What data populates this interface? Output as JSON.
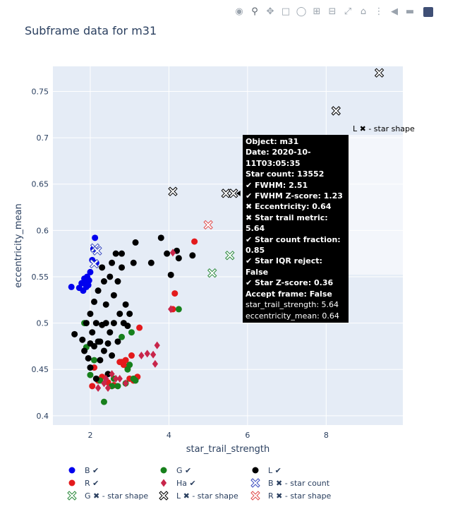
{
  "title": "Subframe data for m31",
  "modebar": {
    "buttons": [
      "camera-icon",
      "zoom-icon",
      "pan-icon",
      "box-select-icon",
      "lasso-icon",
      "zoom-in-icon",
      "zoom-out-icon",
      "autoscale-icon",
      "home-icon",
      "spike-lines-icon",
      "hover-closest-icon",
      "hover-compare-icon",
      "plotly-logo-icon"
    ]
  },
  "colors": {
    "plot_bg": "#e5ecf6",
    "grid": "#ffffff",
    "B": "#0000ee",
    "R": "#e31a1c",
    "G": "#17801c",
    "L": "#000000",
    "Ha": "#c8254a",
    "reject_B": "#3b4cc0",
    "reject_G": "#2c8a3d",
    "reject_L": "#000000",
    "reject_R": "#e04d4d"
  },
  "tooltip": {
    "lines_bold": [
      "Object: m31",
      "Date: 2020-10-11T03:05:35",
      "Star count: 13552",
      "✔ FWHM: 2.51",
      "✔ FWHM Z-score: 1.23",
      "✖ Eccentricity: 0.64",
      "✖ Star trail metric: 5.64",
      "✔ Star count fraction: 0.85",
      "✔ Star IQR reject: False",
      "✔ Star Z-score: 0.36",
      "Accept frame: False"
    ],
    "lines_plain": [
      "star_trail_strength: 5.64",
      "eccentricity_mean: 0.64"
    ],
    "series_label": "L ✖ - star shape"
  },
  "chart_data": {
    "type": "scatter",
    "title": "Subframe data for m31",
    "xlabel": "star_trail_strength",
    "ylabel": "eccentricity_mean",
    "xlim": [
      1.05,
      9.95
    ],
    "ylim": [
      0.39,
      0.777
    ],
    "xticks": [
      2,
      4,
      6,
      8
    ],
    "yticks": [
      0.4,
      0.45,
      0.5,
      0.55,
      0.6,
      0.65,
      0.7,
      0.75
    ],
    "grid": true,
    "legend_position": "bottom",
    "series": [
      {
        "name": "B ✔",
        "marker": "circle",
        "color_key": "B",
        "x": [
          1.52,
          1.72,
          1.78,
          1.82,
          1.85,
          1.88,
          1.92,
          1.95,
          2.0,
          2.05,
          2.08,
          2.12,
          2.15,
          1.9,
          1.97
        ],
        "y": [
          0.539,
          0.538,
          0.543,
          0.535,
          0.548,
          0.542,
          0.55,
          0.541,
          0.555,
          0.568,
          0.58,
          0.592,
          0.565,
          0.539,
          0.546
        ]
      },
      {
        "name": "R ✔",
        "marker": "circle",
        "color_key": "R",
        "x": [
          2.05,
          2.1,
          2.2,
          2.3,
          2.45,
          2.6,
          2.75,
          2.85,
          2.9,
          3.0,
          3.05,
          3.1,
          3.2,
          3.25,
          4.1,
          4.15,
          4.65,
          2.8,
          2.95
        ],
        "y": [
          0.432,
          0.452,
          0.438,
          0.442,
          0.436,
          0.433,
          0.458,
          0.455,
          0.46,
          0.44,
          0.465,
          0.438,
          0.442,
          0.495,
          0.515,
          0.532,
          0.588,
          0.458,
          0.452
        ]
      },
      {
        "name": "G ✔",
        "marker": "circle",
        "color_key": "G",
        "x": [
          1.85,
          1.9,
          2.0,
          2.1,
          2.25,
          2.35,
          2.55,
          2.7,
          2.8,
          2.9,
          3.0,
          3.05,
          3.1,
          3.15,
          4.25,
          2.95,
          2.6
        ],
        "y": [
          0.5,
          0.474,
          0.444,
          0.46,
          0.438,
          0.415,
          0.432,
          0.432,
          0.485,
          0.435,
          0.455,
          0.49,
          0.44,
          0.438,
          0.515,
          0.45,
          0.44
        ]
      },
      {
        "name": "L ✔",
        "marker": "circle",
        "color_key": "L",
        "x": [
          1.6,
          1.8,
          1.85,
          1.9,
          1.95,
          2.0,
          2.0,
          2.05,
          2.1,
          2.1,
          2.15,
          2.2,
          2.2,
          2.25,
          2.3,
          2.3,
          2.35,
          2.35,
          2.4,
          2.4,
          2.45,
          2.5,
          2.5,
          2.55,
          2.55,
          2.6,
          2.6,
          2.65,
          2.7,
          2.7,
          2.75,
          2.8,
          2.8,
          2.85,
          2.9,
          2.95,
          3.0,
          3.1,
          3.15,
          3.55,
          3.8,
          3.95,
          4.2,
          4.25,
          4.6,
          4.05,
          2.0,
          2.15,
          2.25,
          2.45
        ],
        "y": [
          0.488,
          0.482,
          0.47,
          0.5,
          0.462,
          0.478,
          0.51,
          0.49,
          0.475,
          0.523,
          0.5,
          0.48,
          0.535,
          0.46,
          0.498,
          0.56,
          0.47,
          0.545,
          0.5,
          0.52,
          0.478,
          0.49,
          0.55,
          0.465,
          0.565,
          0.5,
          0.53,
          0.575,
          0.48,
          0.545,
          0.51,
          0.56,
          0.575,
          0.5,
          0.52,
          0.497,
          0.51,
          0.565,
          0.587,
          0.565,
          0.592,
          0.575,
          0.578,
          0.57,
          0.573,
          0.552,
          0.452,
          0.44,
          0.48,
          0.445
        ]
      },
      {
        "name": "Ha ✔",
        "marker": "diamond",
        "color_key": "Ha",
        "x": [
          2.2,
          2.35,
          2.4,
          2.45,
          2.55,
          2.65,
          2.75,
          2.9,
          3.3,
          3.45,
          3.6,
          3.65,
          3.7,
          4.05,
          4.1
        ],
        "y": [
          0.43,
          0.435,
          0.44,
          0.43,
          0.445,
          0.44,
          0.44,
          0.435,
          0.465,
          0.467,
          0.466,
          0.456,
          0.476,
          0.515,
          0.576
        ]
      },
      {
        "name": "B ✖ - star count",
        "marker": "x-open",
        "color_key": "reject_B",
        "x": [
          2.12,
          2.18,
          2.1
        ],
        "y": [
          0.581,
          0.578,
          0.564
        ]
      },
      {
        "name": "G ✖ - star shape",
        "marker": "x-open",
        "color_key": "reject_G",
        "x": [
          5.1,
          5.55
        ],
        "y": [
          0.554,
          0.573
        ]
      },
      {
        "name": "L ✖ - star shape",
        "marker": "x-open",
        "color_key": "reject_L",
        "x": [
          4.1,
          5.45,
          5.64,
          8.25,
          9.35
        ],
        "y": [
          0.642,
          0.64,
          0.64,
          0.729,
          0.77
        ]
      },
      {
        "name": "R ✖ - star shape",
        "marker": "x-open",
        "color_key": "reject_R",
        "x": [
          5.0
        ],
        "y": [
          0.606
        ]
      }
    ],
    "legend_layout": [
      [
        "B ✔",
        "G ✔",
        "L ✔"
      ],
      [
        "R ✔",
        "Ha ✔",
        "B ✖ - star count"
      ],
      [
        "G ✖ - star shape",
        "L ✖ - star shape",
        "R ✖ - star shape"
      ]
    ]
  }
}
